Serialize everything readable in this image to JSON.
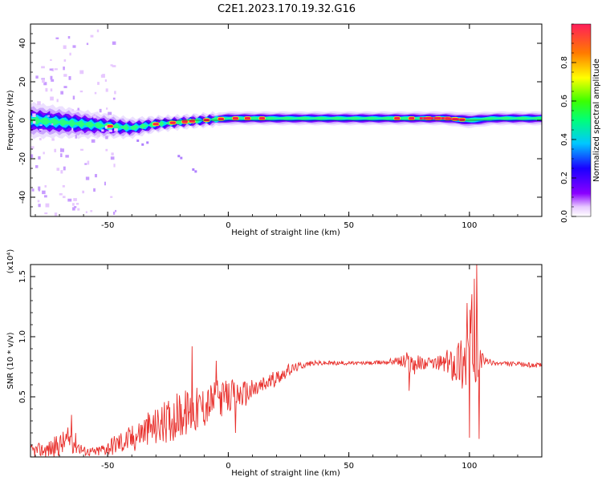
{
  "figure_title": "C2E1.2023.170.19.32.G16",
  "colors": {
    "axis": "#000000",
    "snr_line": "#e8302c",
    "background": "#ffffff"
  },
  "chart_data": [
    {
      "type": "heatmap",
      "title": "C2E1.2023.170.19.32.G16",
      "xlabel": "Height of straight line (km)",
      "ylabel": "Frequency (Hz)",
      "xlim": [
        -82,
        130
      ],
      "ylim": [
        -50,
        50
      ],
      "x_ticks": [
        -50,
        0,
        50,
        100
      ],
      "y_ticks": [
        -40,
        -20,
        0,
        20,
        40
      ],
      "colorbar": {
        "label": "Normalized spectral amplitude",
        "range": [
          0,
          1
        ],
        "ticks": [
          0.0,
          0.2,
          0.4,
          0.6,
          0.8
        ],
        "tick_labels": [
          "0.0",
          "0.2",
          "0.4",
          "0.6",
          "0.8"
        ],
        "colormap": [
          "#ffffff",
          "#e7c8ff",
          "#8a00ff",
          "#1a00ff",
          "#00c8ff",
          "#00ff7a",
          "#3cff00",
          "#ffff00",
          "#ff7a00",
          "#ff1e3c"
        ]
      },
      "ridge": {
        "x": [
          -82,
          -70,
          -60,
          -50,
          -40,
          -30,
          -20,
          -10,
          0,
          10,
          20,
          30,
          50,
          70,
          80,
          90,
          100,
          110,
          130
        ],
        "center_freq": [
          0,
          -1,
          -2,
          -3,
          -4,
          -2,
          -1,
          0,
          1,
          1,
          1,
          1,
          1,
          1,
          1,
          1,
          0,
          1,
          1
        ],
        "half_width": [
          9,
          8,
          7,
          6,
          5,
          4,
          3.5,
          3.5,
          3.5,
          3.5,
          3.5,
          3.5,
          3.5,
          3.5,
          3.5,
          3.5,
          4,
          3.5,
          3.5
        ],
        "peak_x": [
          -49,
          -30,
          -23,
          -18,
          -15,
          -9,
          -3,
          3,
          8,
          14,
          70,
          76,
          83,
          87,
          91,
          94,
          97
        ]
      }
    },
    {
      "type": "line",
      "xlabel": "Height of straight line (km)",
      "ylabel": "SNR (10 * v/v)",
      "multiplier_label": "(x10⁴)",
      "xlim": [
        -82,
        130
      ],
      "ylim": [
        0,
        1.6
      ],
      "x_ticks": [
        -50,
        0,
        50,
        100
      ],
      "y_ticks": [
        0.5,
        1.0,
        1.5
      ],
      "y_tick_labels": [
        "0.5",
        "1.0",
        "1.5"
      ],
      "series": [
        {
          "x": [
            -82,
            -75,
            -70,
            -65,
            -60,
            -55,
            -50,
            -45,
            -40,
            -35,
            -30,
            -25,
            -20,
            -15,
            -10,
            -5,
            0,
            5,
            10,
            15,
            20,
            25,
            30,
            35,
            40,
            50,
            60,
            70,
            75,
            80,
            85,
            90,
            95,
            98,
            100,
            102,
            104,
            106,
            110,
            120,
            130
          ],
          "values": [
            0.05,
            0.06,
            0.1,
            0.15,
            0.05,
            0.04,
            0.08,
            0.12,
            0.15,
            0.22,
            0.25,
            0.3,
            0.35,
            0.38,
            0.42,
            0.48,
            0.5,
            0.52,
            0.55,
            0.6,
            0.66,
            0.72,
            0.76,
            0.78,
            0.78,
            0.78,
            0.78,
            0.8,
            0.78,
            0.78,
            0.78,
            0.78,
            0.8,
            0.82,
            0.9,
            1.0,
            0.82,
            0.8,
            0.78,
            0.77,
            0.76
          ],
          "noise": [
            0.05,
            0.07,
            0.1,
            0.12,
            0.04,
            0.04,
            0.07,
            0.1,
            0.12,
            0.14,
            0.16,
            0.18,
            0.2,
            0.2,
            0.18,
            0.16,
            0.14,
            0.12,
            0.1,
            0.08,
            0.06,
            0.05,
            0.03,
            0.02,
            0.02,
            0.015,
            0.015,
            0.03,
            0.12,
            0.06,
            0.04,
            0.1,
            0.2,
            0.3,
            0.4,
            0.5,
            0.1,
            0.04,
            0.02,
            0.02,
            0.02
          ]
        }
      ],
      "spikes": [
        {
          "x": -65,
          "value": 0.35
        },
        {
          "x": -15,
          "value": 0.92
        },
        {
          "x": -5,
          "value": 0.8
        },
        {
          "x": 3,
          "value": 0.2
        },
        {
          "x": 75,
          "value": 0.55
        },
        {
          "x": 99,
          "value": 1.28
        },
        {
          "x": 100,
          "value": 0.16
        },
        {
          "x": 103,
          "value": 1.6
        },
        {
          "x": 104,
          "value": 0.15
        }
      ]
    }
  ]
}
